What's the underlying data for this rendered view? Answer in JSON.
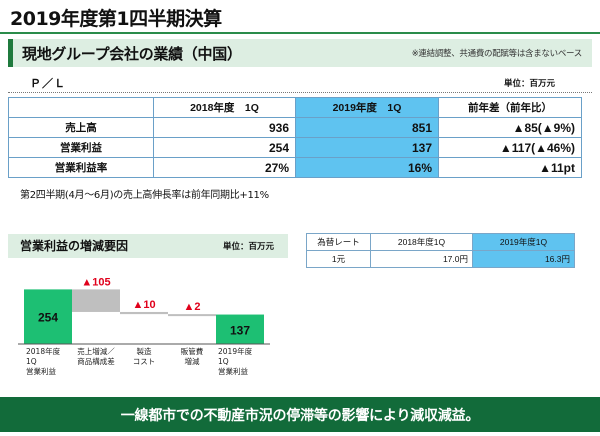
{
  "title": "2019年度第1四半期決算",
  "section": {
    "title": "現地グループ会社の業績（中国）",
    "note": "※連結調整、共通費の配賦等は含まないベース"
  },
  "pl": {
    "label": "Ｐ／Ｌ",
    "unit": "単位：百万元",
    "headers": [
      "",
      "2018年度　1Q",
      "2019年度　1Q",
      "前年差（前年比）"
    ],
    "rows": [
      {
        "label": "売上高",
        "prev": "936",
        "curr": "851",
        "diff": "▲85(▲9%)"
      },
      {
        "label": "営業利益",
        "prev": "254",
        "curr": "137",
        "diff": "▲117(▲46%)"
      },
      {
        "label": "営業利益率",
        "prev": "27%",
        "curr": "16%",
        "diff": "▲11pt"
      }
    ]
  },
  "growth_note": "第2四半期(4月～6月)の売上高伸長率は前年同期比+11%",
  "waterfall": {
    "title": "営業利益の増減要因",
    "unit": "単位：百万元",
    "colors": {
      "total": "#1dbf73",
      "step": "#bfbfbf",
      "label": "#e0001b"
    },
    "steps": [
      {
        "kind": "total",
        "value": 254,
        "value_label": "254",
        "caption": [
          "2018年度",
          "1Q",
          "営業利益"
        ]
      },
      {
        "kind": "decrease",
        "value": 105,
        "value_label": "▲105",
        "caption": [
          "売上増減／",
          "商品構成差"
        ]
      },
      {
        "kind": "decrease",
        "value": 10,
        "value_label": "▲10",
        "caption": [
          "製造",
          "コスト"
        ]
      },
      {
        "kind": "decrease",
        "value": 2,
        "value_label": "▲2",
        "caption": [
          "販管費",
          "増減"
        ]
      },
      {
        "kind": "total",
        "value": 137,
        "value_label": "137",
        "caption": [
          "2019年度",
          "1Q",
          "営業利益"
        ]
      }
    ]
  },
  "fx": {
    "headers": [
      "為替レート",
      "2018年度1Q",
      "2019年度1Q"
    ],
    "row": [
      "1元",
      "17.0円",
      "16.3円"
    ]
  },
  "footer": "一線都市での不動産市況の停滞等の影響により減収減益。"
}
